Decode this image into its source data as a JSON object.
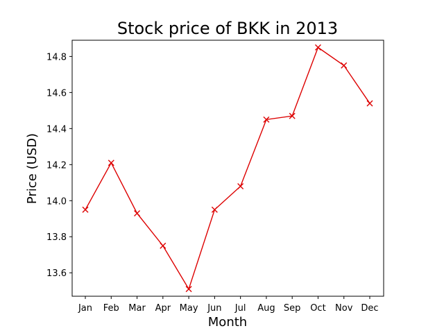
{
  "chart_data": {
    "type": "line",
    "title": "Stock price of BKK in 2013",
    "xlabel": "Month",
    "ylabel": "Price (USD)",
    "categories": [
      "Jan",
      "Feb",
      "Mar",
      "Apr",
      "May",
      "Jun",
      "Jul",
      "Aug",
      "Sep",
      "Oct",
      "Nov",
      "Dec"
    ],
    "series": [
      {
        "values": [
          13.95,
          14.21,
          13.93,
          13.75,
          13.51,
          13.95,
          14.08,
          14.45,
          14.47,
          14.85,
          14.75,
          14.54
        ],
        "color": "#dd0000",
        "marker": "x"
      }
    ],
    "ylim": [
      13.47,
      14.89
    ],
    "yticks": [
      13.6,
      13.8,
      14.0,
      14.2,
      14.4,
      14.6,
      14.8
    ],
    "ytick_labels": [
      "13.6",
      "13.8",
      "14.0",
      "14.2",
      "14.4",
      "14.6",
      "14.8"
    ],
    "grid": false,
    "legend": "none"
  }
}
